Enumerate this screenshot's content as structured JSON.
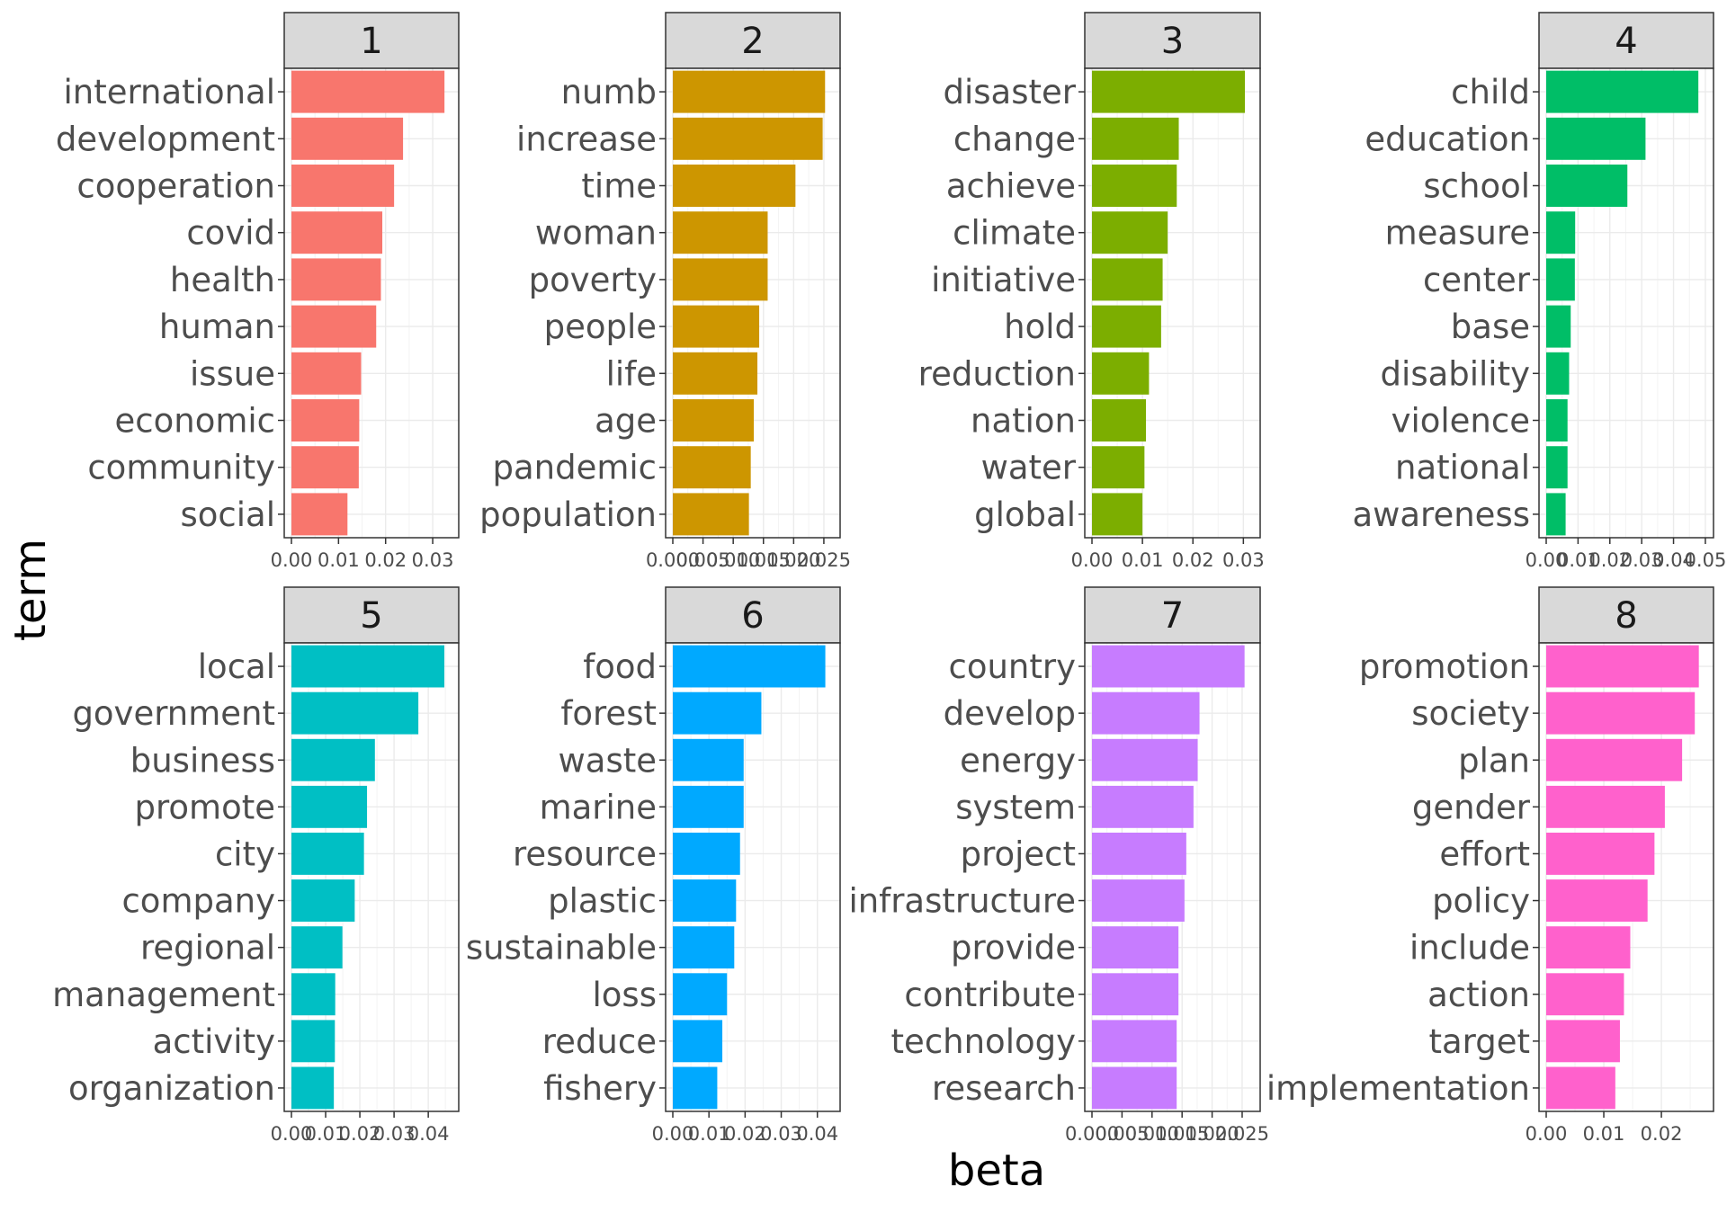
{
  "chart_data": {
    "type": "bar",
    "orientation": "horizontal",
    "xlabel": "beta",
    "ylabel": "term",
    "grid": true,
    "legend": "none",
    "panels": [
      {
        "label": "1",
        "color": "#F8766D",
        "xlim": [
          0,
          0.034
        ],
        "ticks": [
          "0.00",
          "0.01",
          "0.02",
          "0.03"
        ],
        "tick_values": [
          0,
          0.01,
          0.02,
          0.03
        ],
        "terms": [
          "international",
          "development",
          "cooperation",
          "covid",
          "health",
          "human",
          "issue",
          "economic",
          "community",
          "social"
        ],
        "values": [
          0.0325,
          0.0237,
          0.0218,
          0.0193,
          0.019,
          0.018,
          0.0148,
          0.0144,
          0.0143,
          0.0119
        ]
      },
      {
        "label": "2",
        "color": "#CD9600",
        "xlim": [
          0,
          0.0265
        ],
        "ticks": [
          "0.000",
          "0.005",
          "0.010",
          "0.015",
          "0.020",
          "0.025"
        ],
        "tick_values": [
          0,
          0.005,
          0.01,
          0.015,
          0.02,
          0.025
        ],
        "terms": [
          "numb",
          "increase",
          "time",
          "woman",
          "poverty",
          "people",
          "life",
          "age",
          "pandemic",
          "population"
        ],
        "values": [
          0.0252,
          0.0248,
          0.0203,
          0.0157,
          0.0157,
          0.0143,
          0.014,
          0.0134,
          0.0129,
          0.0126
        ]
      },
      {
        "label": "3",
        "color": "#7CAE00",
        "xlim": [
          0,
          0.0319
        ],
        "ticks": [
          "0.00",
          "0.01",
          "0.02",
          "0.03"
        ],
        "tick_values": [
          0,
          0.01,
          0.02,
          0.03
        ],
        "terms": [
          "disaster",
          "change",
          "achieve",
          "climate",
          "initiative",
          "hold",
          "reduction",
          "nation",
          "water",
          "global"
        ],
        "values": [
          0.0303,
          0.0172,
          0.0168,
          0.015,
          0.014,
          0.0137,
          0.0113,
          0.0107,
          0.0104,
          0.01
        ]
      },
      {
        "label": "4",
        "color": "#00BE67",
        "xlim": [
          0,
          0.0503
        ],
        "ticks": [
          "0.00",
          "0.01",
          "0.02",
          "0.03",
          "0.04",
          "0.05"
        ],
        "tick_values": [
          0,
          0.01,
          0.02,
          0.03,
          0.04,
          0.05
        ],
        "terms": [
          "child",
          "education",
          "school",
          "measure",
          "center",
          "base",
          "disability",
          "violence",
          "national",
          "awareness"
        ],
        "values": [
          0.0478,
          0.0312,
          0.0255,
          0.0091,
          0.009,
          0.0077,
          0.0072,
          0.0067,
          0.0067,
          0.0061
        ]
      },
      {
        "label": "5",
        "color": "#00BFC4",
        "xlim": [
          0,
          0.0468
        ],
        "ticks": [
          "0.00",
          "0.01",
          "0.02",
          "0.03",
          "0.04"
        ],
        "tick_values": [
          0,
          0.01,
          0.02,
          0.03,
          0.04
        ],
        "terms": [
          "local",
          "government",
          "business",
          "promote",
          "city",
          "company",
          "regional",
          "management",
          "activity",
          "organization"
        ],
        "values": [
          0.0447,
          0.0371,
          0.0244,
          0.0221,
          0.0212,
          0.0185,
          0.0149,
          0.0128,
          0.0127,
          0.0124
        ]
      },
      {
        "label": "6",
        "color": "#00A9FF",
        "xlim": [
          0,
          0.0443
        ],
        "ticks": [
          "0.00",
          "0.01",
          "0.02",
          "0.03",
          "0.04"
        ],
        "tick_values": [
          0,
          0.01,
          0.02,
          0.03,
          0.04
        ],
        "terms": [
          "food",
          "forest",
          "waste",
          "marine",
          "resource",
          "plastic",
          "sustainable",
          "loss",
          "reduce",
          "fishery"
        ],
        "values": [
          0.0422,
          0.0245,
          0.0196,
          0.0196,
          0.0186,
          0.0175,
          0.017,
          0.015,
          0.0137,
          0.0123
        ]
      },
      {
        "label": "7",
        "color": "#C77CFF",
        "xlim": [
          0,
          0.0268
        ],
        "ticks": [
          "0.000",
          "0.005",
          "0.010",
          "0.015",
          "0.020",
          "0.025"
        ],
        "tick_values": [
          0,
          0.005,
          0.01,
          0.015,
          0.02,
          0.025
        ],
        "terms": [
          "country",
          "develop",
          "energy",
          "system",
          "project",
          "infrastructure",
          "provide",
          "contribute",
          "technology",
          "research"
        ],
        "values": [
          0.0254,
          0.0179,
          0.0176,
          0.0169,
          0.0157,
          0.0154,
          0.0144,
          0.0144,
          0.0141,
          0.0141
        ]
      },
      {
        "label": "8",
        "color": "#FF61CC",
        "xlim": [
          0,
          0.0278
        ],
        "ticks": [
          "0.00",
          "0.01",
          "0.02"
        ],
        "tick_values": [
          0,
          0.01,
          0.02
        ],
        "terms": [
          "promotion",
          "society",
          "plan",
          "gender",
          "effort",
          "policy",
          "include",
          "action",
          "target",
          "implementation"
        ],
        "values": [
          0.0265,
          0.0258,
          0.0236,
          0.0206,
          0.0188,
          0.0176,
          0.0146,
          0.0135,
          0.0128,
          0.012
        ]
      }
    ]
  }
}
